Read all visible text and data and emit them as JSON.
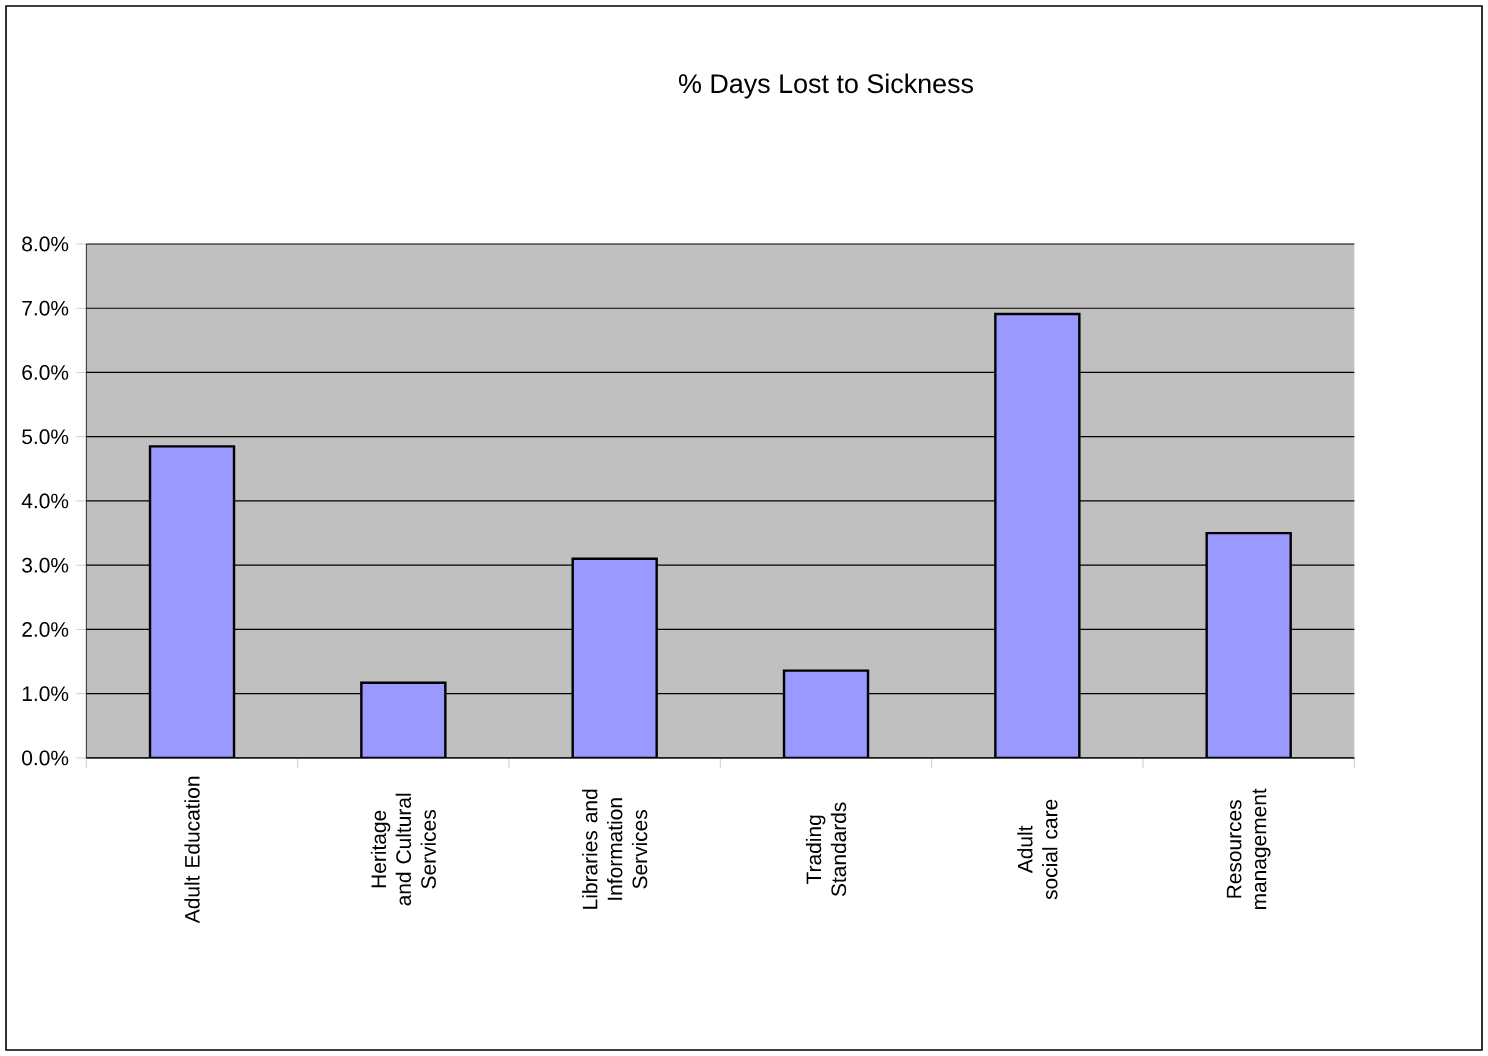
{
  "chart_data": {
    "type": "bar",
    "title": "% Days Lost to Sickness",
    "categories": [
      "Adult Education",
      "Heritage and Cultural Services",
      "Libraries and Information Services",
      "Trading Standards",
      "Adult social care",
      "Resources management"
    ],
    "values": [
      4.85,
      1.17,
      3.1,
      1.36,
      6.91,
      3.5
    ],
    "color": "#9999ff",
    "ylim": [
      0,
      8
    ],
    "yticks": [
      {
        "value": 0,
        "label": "0.0%"
      },
      {
        "value": 1,
        "label": "1.0%"
      },
      {
        "value": 2,
        "label": "2.0%"
      },
      {
        "value": 3,
        "label": "3.0%"
      },
      {
        "value": 4,
        "label": "4.0%"
      },
      {
        "value": 5,
        "label": "5.0%"
      },
      {
        "value": 6,
        "label": "6.0%"
      },
      {
        "value": 7,
        "label": "7.0%"
      },
      {
        "value": 8,
        "label": "8.0%"
      }
    ],
    "grid": "y"
  }
}
